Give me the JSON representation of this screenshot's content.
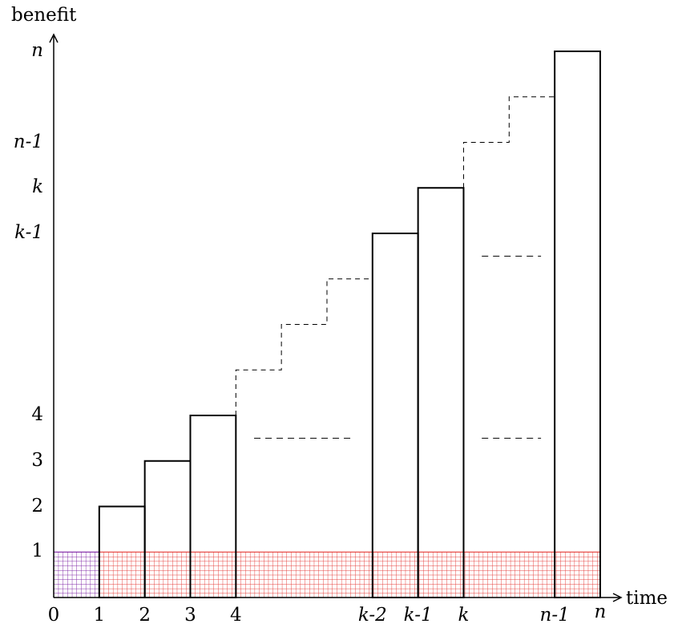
{
  "y_axis_label": "benefit",
  "x_axis_label": "time",
  "x_ticks": [
    {
      "v": 0,
      "label": "0",
      "italic": false
    },
    {
      "v": 1,
      "label": "1",
      "italic": false
    },
    {
      "v": 2,
      "label": "2",
      "italic": false
    },
    {
      "v": 3,
      "label": "3",
      "italic": false
    },
    {
      "v": 4,
      "label": "4",
      "italic": false
    },
    {
      "v": 7,
      "label": "k-2",
      "italic": true
    },
    {
      "v": 8,
      "label": "k-1",
      "italic": true
    },
    {
      "v": 9,
      "label": "k",
      "italic": true
    },
    {
      "v": 11,
      "label": "n-1",
      "italic": true
    },
    {
      "v": 12,
      "label": "n",
      "italic": true
    }
  ],
  "y_ticks": [
    {
      "v": 1,
      "label": "1",
      "italic": false
    },
    {
      "v": 2,
      "label": "2",
      "italic": false
    },
    {
      "v": 3,
      "label": "3",
      "italic": false
    },
    {
      "v": 4,
      "label": "4",
      "italic": false
    },
    {
      "v": 8,
      "label": "k-1",
      "italic": true
    },
    {
      "v": 9,
      "label": "k",
      "italic": true
    },
    {
      "v": 10,
      "label": "n-1",
      "italic": true
    },
    {
      "v": 12,
      "label": "n",
      "italic": true
    }
  ],
  "bars": [
    {
      "x0": 1,
      "x1": 2,
      "h": 2
    },
    {
      "x0": 2,
      "x1": 3,
      "h": 3
    },
    {
      "x0": 3,
      "x1": 4,
      "h": 4
    },
    {
      "x0": 7,
      "x1": 8,
      "h": 8
    },
    {
      "x0": 8,
      "x1": 9,
      "h": 9
    },
    {
      "x0": 11,
      "x1": 12,
      "h": 12
    }
  ],
  "hatch_regions": [
    {
      "x0": 0,
      "x1": 1,
      "y0": 0,
      "y1": 1,
      "color": "#7b1fa2"
    },
    {
      "x0": 1,
      "x1": 12,
      "y0": 0,
      "y1": 1,
      "color": "#e53935"
    }
  ],
  "staircase_dashes": [
    [
      [
        4,
        4
      ],
      [
        4,
        5
      ],
      [
        5,
        5
      ],
      [
        5,
        6
      ],
      [
        6,
        6
      ],
      [
        6,
        7
      ],
      [
        7,
        7
      ]
    ],
    [
      [
        9,
        9
      ],
      [
        9,
        10
      ],
      [
        10,
        10
      ],
      [
        10,
        11
      ],
      [
        11,
        11
      ]
    ]
  ],
  "ellipsis_dashes": [
    {
      "x0": 4.4,
      "x1": 6.6,
      "y": 3.5
    },
    {
      "x0": 9.4,
      "x1": 10.7,
      "y": 3.5
    },
    {
      "x0": 9.4,
      "x1": 10.7,
      "y": 7.5
    }
  ]
}
